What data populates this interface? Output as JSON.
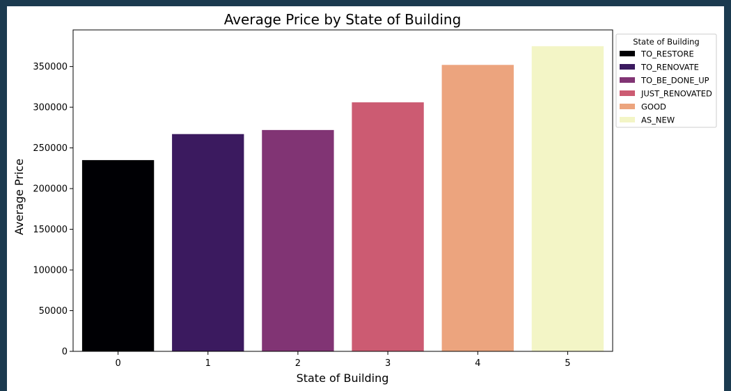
{
  "chart_data": {
    "type": "bar",
    "title": "Average Price by State of Building",
    "xlabel": "State of Building",
    "ylabel": "Average Price",
    "categories": [
      "0",
      "1",
      "2",
      "3",
      "4",
      "5"
    ],
    "values": [
      235000,
      267000,
      272000,
      306000,
      352000,
      375000
    ],
    "ylim": [
      0,
      395000
    ],
    "yticks": [
      0,
      50000,
      100000,
      150000,
      200000,
      250000,
      300000,
      350000
    ],
    "grid": false,
    "colors": [
      "#000004",
      "#3b1a5f",
      "#813474",
      "#cc5b72",
      "#eca47e",
      "#f3f5c6"
    ],
    "legend": {
      "title": "State of Building",
      "position": "upper-right-outside",
      "entries": [
        "TO_RESTORE",
        "TO_RENOVATE",
        "TO_BE_DONE_UP",
        "JUST_RENOVATED",
        "GOOD",
        "AS_NEW"
      ]
    }
  }
}
